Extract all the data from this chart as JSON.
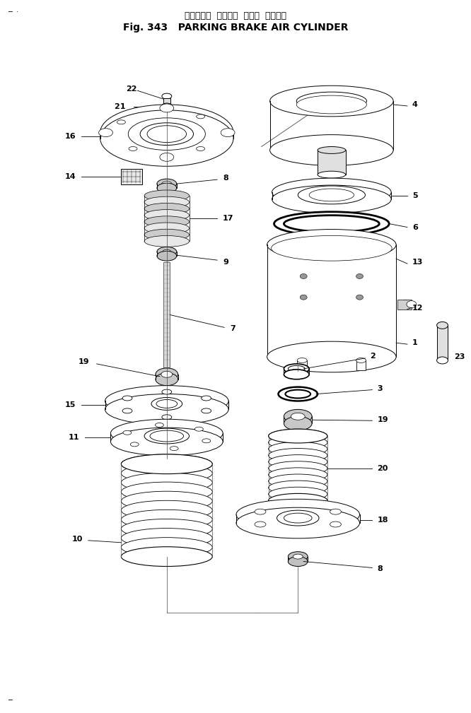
{
  "title_japanese": "パーキング  ブレーキ  エアー  シリンダ",
  "title_english": "Fig. 343   PARKING BRAKE AIR CYLINDER",
  "bg_color": "#ffffff",
  "fig_width": 6.66,
  "fig_height": 10.09
}
